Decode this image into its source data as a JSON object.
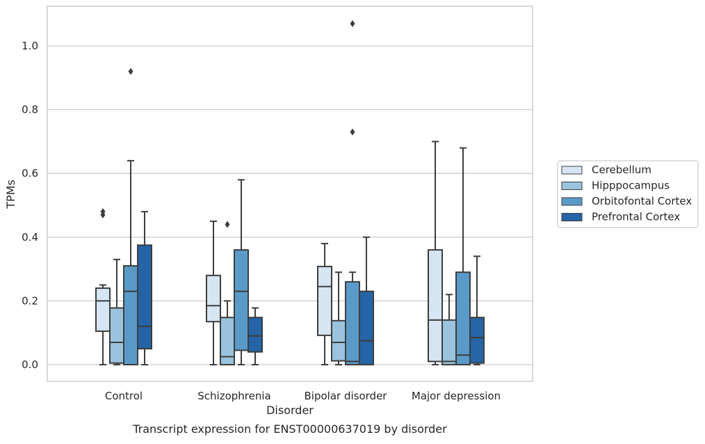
{
  "chart_data": {
    "type": "boxplot",
    "caption": "Transcript expression for ENST00000637019 by disorder",
    "xlabel": "Disorder",
    "ylabel": "TPMs",
    "ylim": [
      -0.05,
      1.13
    ],
    "yticks": [
      "0.0",
      "0.2",
      "0.4",
      "0.6",
      "0.8",
      "1.0"
    ],
    "grid": "horizontal",
    "legend_position": "right",
    "categories": [
      "Control",
      "Schizophrenia",
      "Bipolar disorder",
      "Major depression"
    ],
    "series": [
      {
        "name": "Cerebellum",
        "color": "#d6e5f3",
        "boxes": [
          {
            "whisker_low": 0.0,
            "q1": 0.105,
            "median": 0.2,
            "q3": 0.24,
            "whisker_high": 0.25,
            "outliers": [
              0.47,
              0.48
            ]
          },
          {
            "whisker_low": 0.0,
            "q1": 0.135,
            "median": 0.185,
            "q3": 0.28,
            "whisker_high": 0.45,
            "outliers": []
          },
          {
            "whisker_low": 0.0,
            "q1": 0.092,
            "median": 0.245,
            "q3": 0.308,
            "whisker_high": 0.38,
            "outliers": []
          },
          {
            "whisker_low": 0.0,
            "q1": 0.01,
            "median": 0.14,
            "q3": 0.36,
            "whisker_high": 0.7,
            "outliers": []
          }
        ]
      },
      {
        "name": "Hipppocampus",
        "color": "#9ac4dd",
        "boxes": [
          {
            "whisker_low": 0.0,
            "q1": 0.005,
            "median": 0.07,
            "q3": 0.178,
            "whisker_high": 0.33,
            "outliers": []
          },
          {
            "whisker_low": 0.0,
            "q1": 0.0,
            "median": 0.025,
            "q3": 0.148,
            "whisker_high": 0.2,
            "outliers": [
              0.44
            ]
          },
          {
            "whisker_low": 0.0,
            "q1": 0.012,
            "median": 0.07,
            "q3": 0.138,
            "whisker_high": 0.29,
            "outliers": []
          },
          {
            "whisker_low": 0.0,
            "q1": 0.0,
            "median": 0.01,
            "q3": 0.14,
            "whisker_high": 0.22,
            "outliers": []
          }
        ]
      },
      {
        "name": "Orbitofontal Cortex",
        "color": "#5a9ac8",
        "boxes": [
          {
            "whisker_low": 0.0,
            "q1": 0.0,
            "median": 0.23,
            "q3": 0.31,
            "whisker_high": 0.64,
            "outliers": [
              0.92
            ]
          },
          {
            "whisker_low": 0.0,
            "q1": 0.045,
            "median": 0.23,
            "q3": 0.36,
            "whisker_high": 0.58,
            "outliers": []
          },
          {
            "whisker_low": 0.0,
            "q1": 0.0,
            "median": 0.01,
            "q3": 0.26,
            "whisker_high": 0.29,
            "outliers": [
              0.73,
              1.07
            ]
          },
          {
            "whisker_low": 0.0,
            "q1": 0.0,
            "median": 0.03,
            "q3": 0.29,
            "whisker_high": 0.68,
            "outliers": []
          }
        ]
      },
      {
        "name": "Prefrontal Cortex",
        "color": "#2564a7",
        "boxes": [
          {
            "whisker_low": 0.0,
            "q1": 0.05,
            "median": 0.12,
            "q3": 0.375,
            "whisker_high": 0.48,
            "outliers": []
          },
          {
            "whisker_low": 0.0,
            "q1": 0.04,
            "median": 0.09,
            "q3": 0.148,
            "whisker_high": 0.178,
            "outliers": []
          },
          {
            "whisker_low": 0.0,
            "q1": 0.0,
            "median": 0.075,
            "q3": 0.23,
            "whisker_high": 0.4,
            "outliers": []
          },
          {
            "whisker_low": 0.0,
            "q1": 0.005,
            "median": 0.085,
            "q3": 0.148,
            "whisker_high": 0.34,
            "outliers": []
          }
        ]
      }
    ]
  }
}
